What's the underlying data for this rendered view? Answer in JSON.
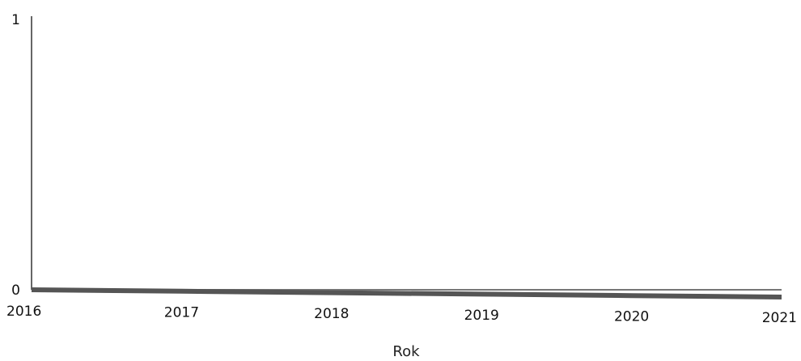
{
  "chart_data": {
    "type": "line",
    "title": "",
    "xlabel": "Rok",
    "ylabel": "",
    "x": [
      2016,
      2017,
      2018,
      2019,
      2020,
      2021
    ],
    "xticks": [
      "2016",
      "2017",
      "2018",
      "2019",
      "2020",
      "2021"
    ],
    "yticks": [
      "0",
      "1"
    ],
    "ylim": [
      0,
      1
    ],
    "xlim": [
      2016,
      2021
    ],
    "grid": false,
    "legend": "none",
    "series": [
      {
        "values": [
          0,
          0,
          0,
          0,
          0,
          0
        ],
        "color": "#555555"
      }
    ]
  }
}
